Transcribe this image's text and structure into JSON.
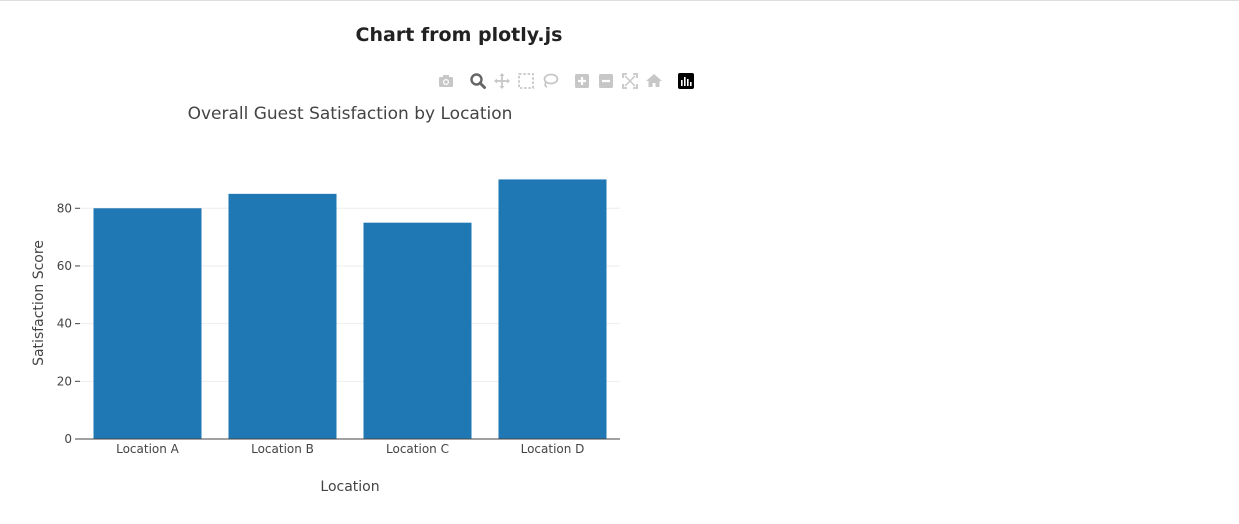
{
  "page": {
    "title": "Chart from plotly.js"
  },
  "modebar": {
    "buttons": [
      "camera-icon",
      "zoom-icon",
      "pan-icon",
      "box-select-icon",
      "lasso-select-icon",
      "zoom-in-icon",
      "zoom-out-icon",
      "autoscale-icon",
      "reset-axes-icon",
      "plotly-logo-icon"
    ],
    "colors": {
      "inactive": "#c7c7c7",
      "active": "#666666",
      "logo": "#000000"
    }
  },
  "chart_data": {
    "type": "bar",
    "title": "Overall Guest Satisfaction by Location",
    "xlabel": "Location",
    "ylabel": "Satisfaction Score",
    "categories": [
      "Location A",
      "Location B",
      "Location C",
      "Location D"
    ],
    "values": [
      80,
      85,
      75,
      90
    ],
    "ylim": [
      0,
      95
    ],
    "yticks": [
      0,
      20,
      40,
      60,
      80
    ],
    "grid": true,
    "bar_color": "#1f77b4"
  }
}
